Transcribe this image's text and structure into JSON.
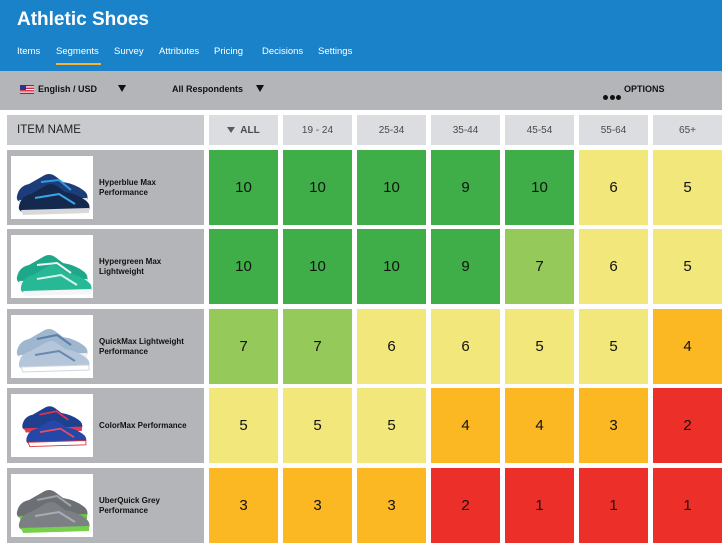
{
  "app": {
    "title": "Athletic Shoes",
    "nav": [
      "Items",
      "Segments",
      "Survey",
      "Attributes",
      "Pricing",
      "Decisions",
      "Settings"
    ],
    "active_nav": "Segments"
  },
  "toolbar": {
    "language": "English / USD",
    "respondents": "All Respondents",
    "options": "OPTIONS"
  },
  "table": {
    "item_header": "ITEM NAME",
    "columns": [
      "ALL",
      "19 - 24",
      "25-34",
      "35-44",
      "45-54",
      "55-64",
      "65+"
    ],
    "rows": [
      {
        "name": "Hyperblue Max Performance",
        "values": [
          10,
          10,
          10,
          9,
          10,
          6,
          5
        ]
      },
      {
        "name": "Hypergreen Max Lightweight",
        "values": [
          10,
          10,
          10,
          9,
          7,
          6,
          5
        ]
      },
      {
        "name": "QuickMax Lightweight Performance",
        "values": [
          7,
          7,
          6,
          6,
          5,
          5,
          4
        ]
      },
      {
        "name": "ColorMax Performance",
        "values": [
          5,
          5,
          5,
          4,
          4,
          3,
          2
        ]
      },
      {
        "name": "UberQuick Grey Performance",
        "values": [
          3,
          3,
          3,
          2,
          1,
          1,
          1
        ]
      }
    ]
  },
  "colors": {
    "header_blue": "#1a82c9",
    "active_underline": "#f4b533",
    "score_9_10": "#3fae49",
    "score_7_8": "#95c95a",
    "score_5_6": "#f2e77b",
    "score_3_4": "#fbb823",
    "score_1_2": "#ec3029"
  }
}
